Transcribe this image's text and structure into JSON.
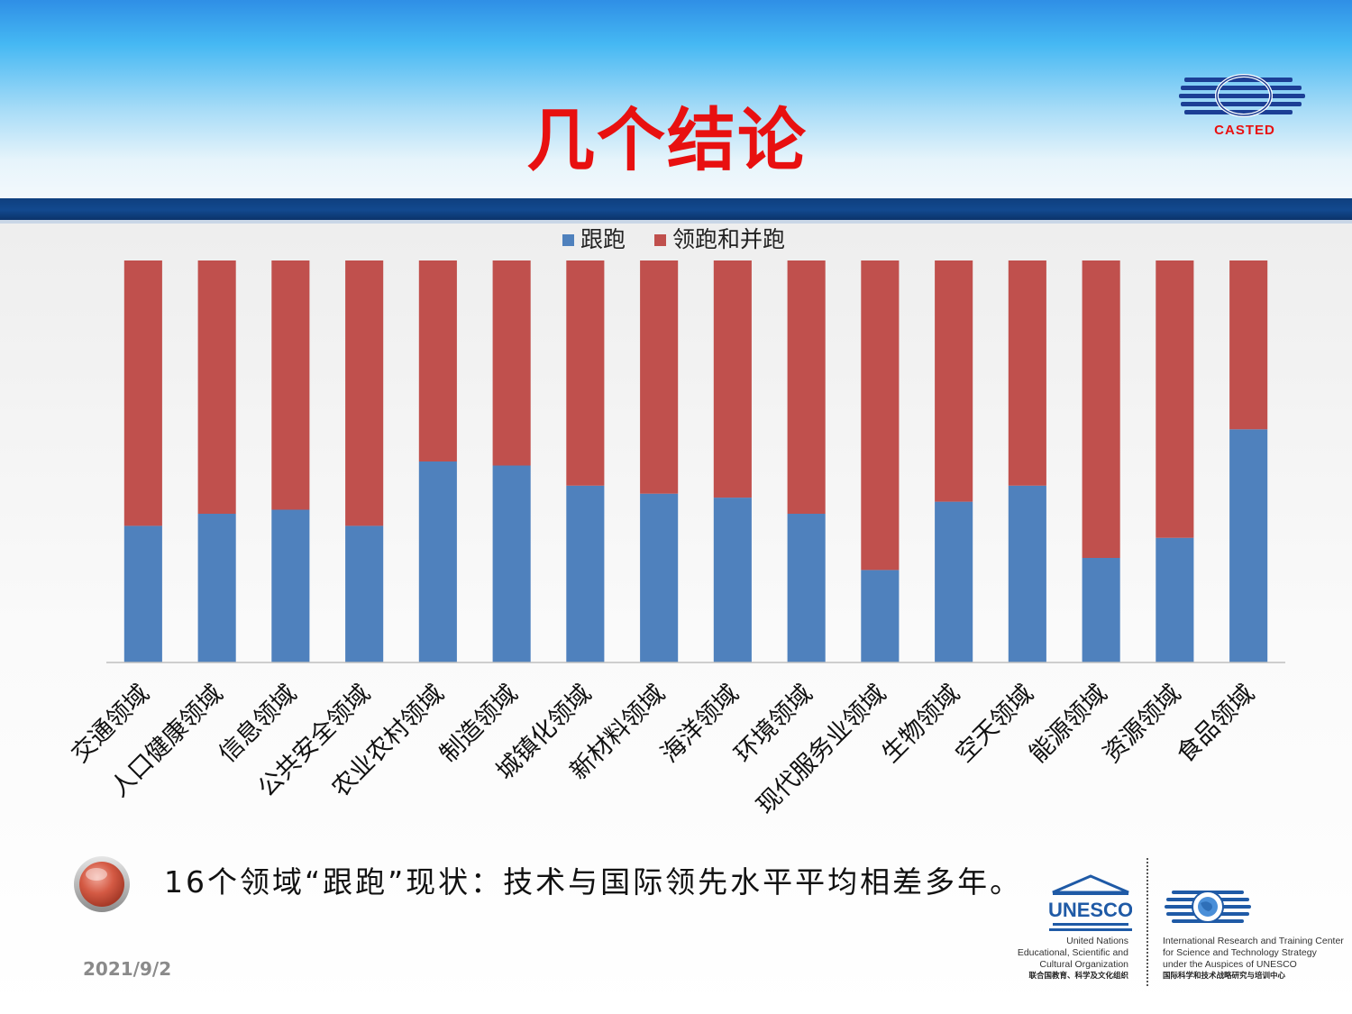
{
  "slide": {
    "title": "几个结论",
    "conclusion": "16个领域“跟跑”现状：技术与国际领先水平平均相差多年。",
    "date": "2021/9/2"
  },
  "logos": {
    "casted": "CASTED",
    "unesco": {
      "wordmark": "UNESCO",
      "caption_lines": [
        "United Nations",
        "Educational, Scientific and",
        "Cultural Organization"
      ],
      "caption_cn": "联合国教育、科学及文化组织"
    },
    "irtc": {
      "caption_lines": [
        "International Research and Training Center",
        "for Science and Technology Strategy",
        "under the Auspices of UNESCO"
      ],
      "caption_cn": "国际科学和技术战略研究与培训中心"
    }
  },
  "colors": {
    "series_follow": "#4f81bd",
    "series_lead": "#c0504d",
    "title": "#e81010",
    "header_bar": "#12498f"
  },
  "chart_data": {
    "type": "bar",
    "stacked": "percent",
    "legend_position": "top",
    "grid": false,
    "title": "",
    "xlabel": "",
    "ylabel": "",
    "ylim": [
      0,
      100
    ],
    "categories": [
      "交通领域",
      "人口健康领域",
      "信息领域",
      "公共安全领域",
      "农业农村领域",
      "制造领域",
      "城镇化领域",
      "新材料领域",
      "海洋领域",
      "环境领域",
      "现代服务业领域",
      "生物领域",
      "空天领域",
      "能源领域",
      "资源领域",
      "食品领域"
    ],
    "series": [
      {
        "name": "跟跑",
        "color": "#4f81bd",
        "values": [
          34,
          37,
          38,
          34,
          50,
          49,
          44,
          42,
          41,
          37,
          23,
          40,
          44,
          26,
          31,
          58
        ]
      },
      {
        "name": "领跑和并跑",
        "color": "#c0504d",
        "values": [
          66,
          63,
          62,
          66,
          50,
          51,
          56,
          58,
          59,
          63,
          77,
          60,
          56,
          74,
          69,
          42
        ]
      }
    ]
  }
}
